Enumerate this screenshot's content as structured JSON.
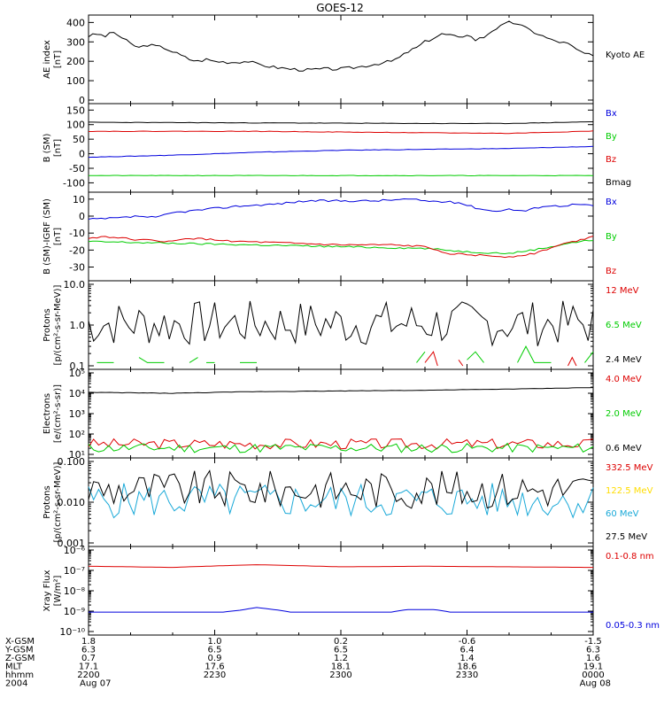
{
  "title": "GOES-12",
  "colors": {
    "black": "#000000",
    "red": "#dd0000",
    "green": "#00cc00",
    "blue": "#0000dd",
    "yellow": "#ffdd00",
    "cyan": "#1aa9d8"
  },
  "bottom_axis": {
    "rows": [
      {
        "label": "X-GSM",
        "values": [
          "1.8",
          "1.0",
          "0.2",
          "-0.6",
          "-1.5"
        ]
      },
      {
        "label": "Y-GSM",
        "values": [
          "6.3",
          "6.5",
          "6.5",
          "6.4",
          "6.3"
        ]
      },
      {
        "label": "Z-GSM",
        "values": [
          "0.7",
          "0.9",
          "1.2",
          "1.4",
          "1.6"
        ]
      },
      {
        "label": "MLT",
        "values": [
          "17.1",
          "17.6",
          "18.1",
          "18.6",
          "19.1"
        ]
      },
      {
        "label": "hhmm",
        "values": [
          "2200",
          "2230",
          "2300",
          "2330",
          "0000"
        ]
      },
      {
        "label": "2004",
        "values": [
          "Aug 07",
          "",
          "",
          "",
          "Aug 08"
        ]
      }
    ]
  },
  "chart_data": [
    {
      "type": "line",
      "id": "ae",
      "ylabel": [
        "AE index",
        "[nT]"
      ],
      "yscale": "linear",
      "ylim": [
        0,
        420
      ],
      "yticks": [
        0,
        100,
        200,
        300,
        400
      ],
      "ytick_labels": [
        "0",
        "100",
        "200",
        "300",
        "400"
      ],
      "x": [
        0,
        60
      ],
      "x_tick_minutes": [
        0,
        15,
        30,
        45,
        60
      ],
      "series": [
        {
          "name": "Kyoto AE",
          "color": "#000000",
          "knots": [
            [
              0,
              330
            ],
            [
              1,
              340
            ],
            [
              2,
              330
            ],
            [
              3,
              350
            ],
            [
              4,
              320
            ],
            [
              5,
              290
            ],
            [
              6,
              270
            ],
            [
              7,
              285
            ],
            [
              9,
              270
            ],
            [
              10,
              250
            ],
            [
              11,
              230
            ],
            [
              12,
              210
            ],
            [
              13,
              200
            ],
            [
              14,
              210
            ],
            [
              15,
              200
            ],
            [
              17,
              195
            ],
            [
              19,
              200
            ],
            [
              20,
              185
            ],
            [
              22,
              170
            ],
            [
              24,
              160
            ],
            [
              26,
              155
            ],
            [
              28,
              160
            ],
            [
              30,
              160
            ],
            [
              32,
              170
            ],
            [
              34,
              185
            ],
            [
              36,
              200
            ],
            [
              37,
              220
            ],
            [
              38,
              250
            ],
            [
              39,
              270
            ],
            [
              40,
              300
            ],
            [
              41,
              320
            ],
            [
              42,
              340
            ],
            [
              43,
              335
            ],
            [
              44,
              320
            ],
            [
              45,
              340
            ],
            [
              46,
              310
            ],
            [
              47,
              325
            ],
            [
              48,
              360
            ],
            [
              49,
              380
            ],
            [
              50,
              400
            ],
            [
              51,
              395
            ],
            [
              52,
              370
            ],
            [
              53,
              350
            ],
            [
              54,
              330
            ],
            [
              55,
              310
            ],
            [
              56,
              300
            ],
            [
              57,
              290
            ],
            [
              58,
              260
            ],
            [
              59,
              240
            ],
            [
              60,
              225
            ]
          ],
          "noise": 8
        }
      ]
    },
    {
      "type": "line",
      "id": "bsm",
      "ylabel": [
        "B (SM)",
        "[nT]"
      ],
      "yscale": "linear",
      "ylim": [
        -120,
        160
      ],
      "yticks": [
        -100,
        -50,
        0,
        50,
        100,
        150
      ],
      "ytick_labels": [
        "-100",
        "-50",
        "0",
        "50",
        "100",
        "150"
      ],
      "x": [
        0,
        60
      ],
      "series": [
        {
          "name": "Bx",
          "color": "#0000dd",
          "knots": [
            [
              0,
              -12
            ],
            [
              10,
              -5
            ],
            [
              20,
              5
            ],
            [
              30,
              12
            ],
            [
              40,
              15
            ],
            [
              50,
              18
            ],
            [
              60,
              25
            ]
          ],
          "noise": 0.8
        },
        {
          "name": "By",
          "color": "#00cc00",
          "knots": [
            [
              0,
              -75
            ],
            [
              60,
              -75
            ]
          ],
          "noise": 0.8
        },
        {
          "name": "Bz",
          "color": "#dd0000",
          "knots": [
            [
              0,
              77
            ],
            [
              20,
              77
            ],
            [
              40,
              72
            ],
            [
              50,
              70
            ],
            [
              60,
              78
            ]
          ],
          "noise": 0.8
        },
        {
          "name": "Bmag",
          "color": "#000000",
          "knots": [
            [
              0,
              108
            ],
            [
              20,
              106
            ],
            [
              40,
              104
            ],
            [
              50,
              104
            ],
            [
              60,
              110
            ]
          ],
          "noise": 0.8
        }
      ]
    },
    {
      "type": "line",
      "id": "bigrf",
      "ylabel": [
        "B (SM)-IGRF (SM)",
        "[nT]"
      ],
      "yscale": "linear",
      "ylim": [
        -36,
        12
      ],
      "yticks": [
        -30,
        -20,
        -10,
        0,
        10
      ],
      "ytick_labels": [
        "-30",
        "-20",
        "-10",
        "0",
        "10"
      ],
      "x": [
        0,
        60
      ],
      "series": [
        {
          "name": "Bx",
          "color": "#0000dd",
          "knots": [
            [
              0,
              -2
            ],
            [
              4,
              -1
            ],
            [
              6,
              0
            ],
            [
              8,
              -1
            ],
            [
              10,
              2
            ],
            [
              14,
              4
            ],
            [
              18,
              6
            ],
            [
              22,
              7
            ],
            [
              26,
              9
            ],
            [
              30,
              9
            ],
            [
              34,
              9
            ],
            [
              38,
              10
            ],
            [
              40,
              9
            ],
            [
              44,
              8
            ],
            [
              46,
              5
            ],
            [
              48,
              3
            ],
            [
              50,
              4
            ],
            [
              52,
              3
            ],
            [
              54,
              6
            ],
            [
              56,
              6
            ],
            [
              58,
              7
            ],
            [
              60,
              6
            ]
          ],
          "noise": 0.6
        },
        {
          "name": "By",
          "color": "#00cc00",
          "knots": [
            [
              0,
              -15
            ],
            [
              10,
              -16
            ],
            [
              20,
              -17
            ],
            [
              30,
              -18
            ],
            [
              40,
              -19
            ],
            [
              45,
              -21
            ],
            [
              50,
              -22
            ],
            [
              54,
              -19
            ],
            [
              57,
              -16
            ],
            [
              60,
              -14
            ]
          ],
          "noise": 0.5
        },
        {
          "name": "Bz",
          "color": "#dd0000",
          "knots": [
            [
              0,
              -13
            ],
            [
              2,
              -12
            ],
            [
              6,
              -14
            ],
            [
              10,
              -15
            ],
            [
              12,
              -13
            ],
            [
              18,
              -15
            ],
            [
              24,
              -16
            ],
            [
              30,
              -17
            ],
            [
              36,
              -17
            ],
            [
              40,
              -18
            ],
            [
              43,
              -22
            ],
            [
              46,
              -23
            ],
            [
              50,
              -24
            ],
            [
              53,
              -22
            ],
            [
              56,
              -17
            ],
            [
              60,
              -12
            ]
          ],
          "noise": 0.5
        }
      ]
    },
    {
      "type": "line",
      "id": "protons1",
      "ylabel": [
        "Protons",
        "[p/(cm²-s-sr-MeV)]"
      ],
      "yscale": "log",
      "ylim": [
        0.1,
        10
      ],
      "yticks": [
        0.1,
        1.0,
        10.0
      ],
      "ytick_labels": [
        "0.1",
        "1.0",
        "10.0"
      ],
      "x": [
        0,
        60
      ],
      "series": [
        {
          "name": "12 MeV",
          "color": "#dd0000",
          "segments": [
            [
              [
                40,
                0.12
              ],
              [
                41,
                0.22
              ],
              [
                41.5,
                0.1
              ]
            ],
            [
              [
                44,
                0.14
              ],
              [
                44.5,
                0.1
              ]
            ],
            [
              [
                57,
                0.1
              ],
              [
                57.5,
                0.16
              ],
              [
                58,
                0.1
              ]
            ]
          ]
        },
        {
          "name": "6.5 MeV",
          "color": "#00cc00",
          "segments": [
            [
              [
                1,
                0.12
              ],
              [
                3,
                0.12
              ]
            ],
            [
              [
                6,
                0.16
              ],
              [
                7,
                0.12
              ],
              [
                9,
                0.12
              ]
            ],
            [
              [
                12,
                0.12
              ],
              [
                13,
                0.16
              ]
            ],
            [
              [
                14,
                0.12
              ],
              [
                15,
                0.12
              ]
            ],
            [
              [
                18,
                0.12
              ],
              [
                20,
                0.12
              ]
            ],
            [
              [
                39,
                0.12
              ],
              [
                40,
                0.22
              ]
            ],
            [
              [
                45,
                0.14
              ],
              [
                46,
                0.22
              ],
              [
                47,
                0.12
              ]
            ],
            [
              [
                51,
                0.12
              ],
              [
                52,
                0.3
              ],
              [
                53,
                0.12
              ],
              [
                55,
                0.12
              ]
            ],
            [
              [
                59,
                0.12
              ],
              [
                60,
                0.22
              ]
            ]
          ]
        },
        {
          "name": "2.4 MeV",
          "color": "#000000",
          "random": {
            "min": 0.3,
            "max": 4.0,
            "seed": 7
          }
        }
      ]
    },
    {
      "type": "line",
      "id": "electrons",
      "ylabel": [
        "Electrons",
        "[e/(cm²-s-sr)]"
      ],
      "yscale": "log",
      "ylim": [
        10,
        100000
      ],
      "yticks": [
        10,
        100,
        1000,
        10000,
        100000
      ],
      "ytick_labels": [
        "10¹",
        "10²",
        "10³",
        "10⁴",
        "10⁵"
      ],
      "x": [
        0,
        60
      ],
      "series": [
        {
          "name": "4.0 MeV",
          "color": "#dd0000",
          "random": {
            "min": 18,
            "max": 60,
            "seed": 3
          }
        },
        {
          "name": "2.0 MeV",
          "color": "#00cc00",
          "random": {
            "min": 12,
            "max": 35,
            "seed": 11
          }
        },
        {
          "name": "0.6 MeV",
          "color": "#000000",
          "knots": [
            [
              0,
              11000
            ],
            [
              10,
              10000
            ],
            [
              20,
              12000
            ],
            [
              30,
              13000
            ],
            [
              40,
              14000
            ],
            [
              50,
              16000
            ],
            [
              60,
              19000
            ]
          ],
          "noise": 300
        }
      ]
    },
    {
      "type": "line",
      "id": "protons2",
      "ylabel": [
        "Protons",
        "[p/(cm²-s-sr-MeV)]"
      ],
      "yscale": "log",
      "ylim": [
        0.001,
        0.1
      ],
      "yticks": [
        0.001,
        0.01,
        0.1
      ],
      "ytick_labels": [
        "0.001",
        "0.010",
        "0.100"
      ],
      "x": [
        0,
        60
      ],
      "series": [
        {
          "name": "332.5 MeV",
          "color": "#dd0000",
          "segments": []
        },
        {
          "name": "122.5 MeV",
          "color": "#ffdd00",
          "segments": []
        },
        {
          "name": "60 MeV",
          "color": "#1aa9d8",
          "random": {
            "min": 0.004,
            "max": 0.03,
            "seed": 5
          }
        },
        {
          "name": "27.5 MeV",
          "color": "#000000",
          "random": {
            "min": 0.007,
            "max": 0.06,
            "seed": 9
          }
        }
      ]
    },
    {
      "type": "line",
      "id": "xray",
      "ylabel": [
        "Xray Flux",
        "[W/m²]"
      ],
      "yscale": "log",
      "ylim": [
        1e-10,
        1e-06
      ],
      "yticks": [
        1e-10,
        1e-09,
        1e-08,
        1e-07,
        1e-06
      ],
      "ytick_labels": [
        "10⁻¹⁰",
        "10⁻⁹",
        "10⁻⁸",
        "10⁻⁷",
        "10⁻⁶"
      ],
      "x": [
        0,
        60
      ],
      "series": [
        {
          "name": "0.1-0.8 nm",
          "color": "#dd0000",
          "knots": [
            [
              0,
              1.6e-07
            ],
            [
              10,
              1.4e-07
            ],
            [
              20,
              1.9e-07
            ],
            [
              30,
              1.5e-07
            ],
            [
              40,
              1.6e-07
            ],
            [
              50,
              1.5e-07
            ],
            [
              60,
              1.4e-07
            ]
          ],
          "noise": 0
        },
        {
          "name": "0.05-0.3 nm",
          "color": "#0000dd",
          "knots": [
            [
              0,
              9e-10
            ],
            [
              16,
              9e-10
            ],
            [
              18,
              1.1e-09
            ],
            [
              20,
              1.5e-09
            ],
            [
              22,
              1.2e-09
            ],
            [
              24,
              9e-10
            ],
            [
              36,
              9e-10
            ],
            [
              38,
              1.2e-09
            ],
            [
              41,
              1.2e-09
            ],
            [
              43,
              9e-10
            ],
            [
              60,
              9e-10
            ]
          ],
          "noise": 0
        }
      ]
    }
  ]
}
